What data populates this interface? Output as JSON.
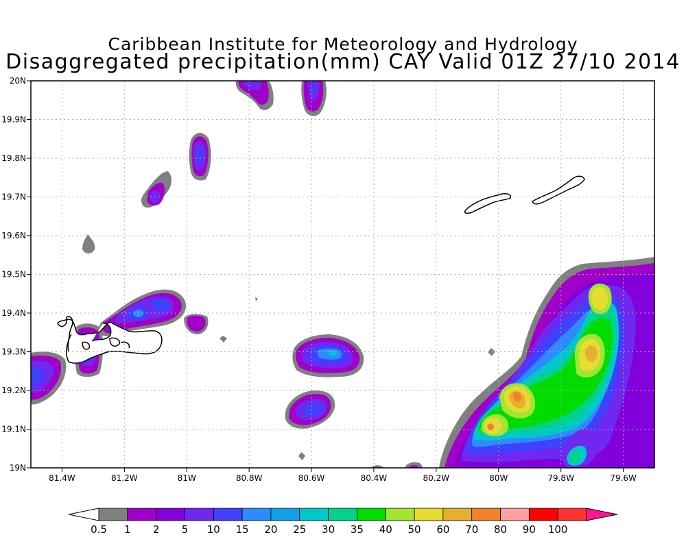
{
  "title": "Caribbean Institute for Meteorology and Hydrology",
  "subtitle": "Disaggregated precipitation(mm) CAY Valid 01Z 27/10 2014",
  "lon_ticks": [
    "81.4W",
    "81.2W",
    "81W",
    "80.8W",
    "80.6W",
    "80.4W",
    "80.2W",
    "80W",
    "79.8W",
    "79.6W"
  ],
  "lat_ticks": [
    "19N",
    "19.1N",
    "19.2N",
    "19.3N",
    "19.4N",
    "19.5N",
    "19.6N",
    "19.7N",
    "19.8N",
    "19.9N",
    "20N"
  ],
  "colorbar": {
    "labels": [
      "0.5",
      "1",
      "2",
      "5",
      "10",
      "15",
      "20",
      "25",
      "30",
      "35",
      "40",
      "50",
      "60",
      "70",
      "80",
      "90",
      "100"
    ],
    "colors": [
      "#808080",
      "#a000c8",
      "#8200dc",
      "#6e28f0",
      "#4040ff",
      "#2c8cff",
      "#14a0e6",
      "#00c8c8",
      "#00d28c",
      "#00dc00",
      "#a0e632",
      "#e6dc32",
      "#e6af2d",
      "#f08228",
      "#ffa0a0",
      "#ff0000",
      "#ff3232"
    ],
    "under_color": "#ffffff",
    "over_color": "#ff1493"
  },
  "map": {
    "lon_range": [
      "81.5W",
      "79.5W"
    ],
    "lat_range": [
      "19N",
      "20N"
    ],
    "grid": true,
    "islands": [
      "Grand Cayman",
      "Little Cayman",
      "Cayman Brac"
    ]
  }
}
